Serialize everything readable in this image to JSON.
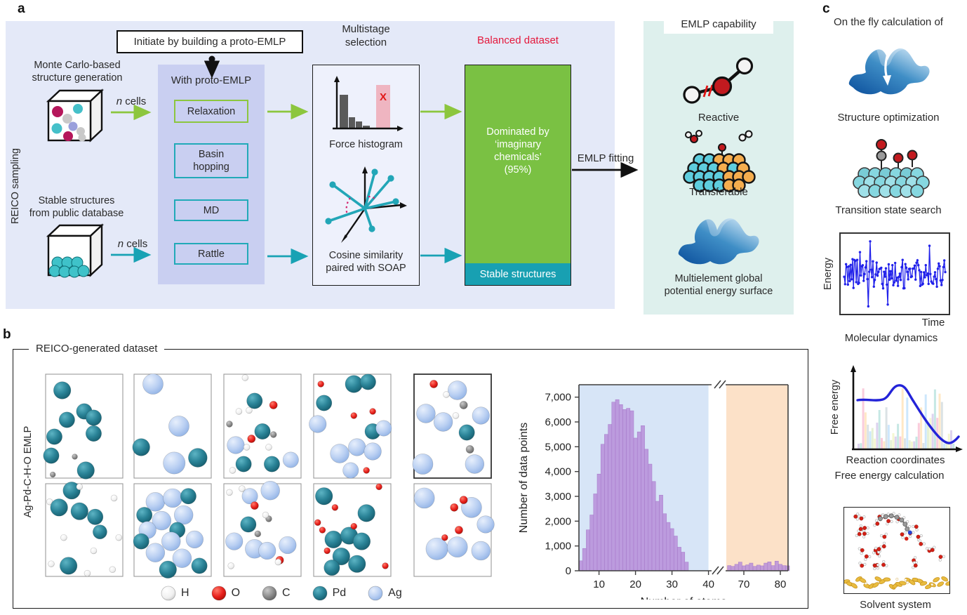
{
  "colors": {
    "panel_a_bg": "#e4e9f8",
    "proto_bg": "#c9cff1",
    "multistage_bg": "#eef1fc",
    "mint_bg": "#def0ed",
    "green_box": "#7ac143",
    "teal_strip": "#18a0b2",
    "green_arrow": "#8cc63e",
    "teal_arrow": "#18a2b4",
    "red_text": "#e4173b",
    "bar_purple": "#b78ed9",
    "region_blue": "#d7e5f7",
    "region_orange": "#fce1c8",
    "md_blue": "#2121ea",
    "fe_curve": "#2323d8",
    "gold": "#e9bc3f"
  },
  "element_colors": {
    "H": "#f4f4f4",
    "O": "#e8211d",
    "C": "#8c8c8c",
    "Pd": "#27798c",
    "Ag": "#b9cff2"
  },
  "panel_a": {
    "label": "a",
    "reico_sampling": "REICO sampling",
    "initiate_box": "Initiate by building a proto-EMLP",
    "mc_line1": "Monte Carlo-based",
    "mc_line2": "structure generation",
    "db_line1": "Stable structures",
    "db_line2": "from public database",
    "n_italic": "n",
    "cells_rest": " cells",
    "proto_title": "With proto-EMLP",
    "methods": [
      "Relaxation",
      "Basin hopping",
      "MD",
      "Rattle"
    ],
    "multistage_line1": "Multistage",
    "multistage_line2": "selection",
    "force_histogram_label": "Force histogram",
    "reject_mark": "X",
    "cosine_line1": "Cosine similarity",
    "cosine_line2": "paired with SOAP",
    "balanced_dataset": "Balanced dataset",
    "dominated_line1": "Dominated by",
    "dominated_line2": "‘imaginary",
    "dominated_line3": "chemicals’",
    "dominated_line4": "(95%)",
    "stable_structures": "Stable structures",
    "emlp_fitting": "EMLP fitting"
  },
  "capability": {
    "title": "EMLP capability",
    "reactive": "Reactive",
    "transferable": "Transferable",
    "multi_line1": "Multielement global",
    "multi_line2": "potential energy surface"
  },
  "panel_b": {
    "label": "b",
    "title": "REICO-generated dataset",
    "side_label": "Ag-Pd-C-H-O EMLP",
    "legend": [
      {
        "symbol": "H"
      },
      {
        "symbol": "O"
      },
      {
        "symbol": "C"
      },
      {
        "symbol": "Pd"
      },
      {
        "symbol": "Ag"
      }
    ],
    "cells": [
      {
        "atoms": [
          [
            "Pd",
            22,
            16,
            11
          ],
          [
            "Pd",
            50,
            36,
            10
          ],
          [
            "Pd",
            62,
            42,
            10
          ],
          [
            "Pd",
            28,
            44,
            10
          ],
          [
            "Pd",
            12,
            60,
            10
          ],
          [
            "Pd",
            62,
            57,
            10
          ],
          [
            "Pd",
            8,
            78,
            10
          ],
          [
            "Pd",
            52,
            92,
            11
          ],
          [
            "C",
            38,
            79,
            3.5
          ],
          [
            "C",
            10,
            96,
            3.5
          ]
        ]
      },
      {
        "atoms": [
          [
            "Ag",
            25,
            10,
            13
          ],
          [
            "Ag",
            58,
            50,
            13
          ],
          [
            "Ag",
            52,
            85,
            14
          ],
          [
            "Pd",
            10,
            70,
            11
          ],
          [
            "Pd",
            82,
            80,
            12
          ]
        ]
      },
      {
        "atoms": [
          [
            "H",
            28,
            4,
            4
          ],
          [
            "Pd",
            40,
            26,
            10
          ],
          [
            "O",
            64,
            30,
            5
          ],
          [
            "H",
            20,
            36,
            4
          ],
          [
            "H",
            33,
            35,
            4
          ],
          [
            "C",
            8,
            48,
            4
          ],
          [
            "Pd",
            50,
            55,
            10
          ],
          [
            "Ag",
            16,
            68,
            11
          ],
          [
            "O",
            36,
            62,
            5
          ],
          [
            "H",
            30,
            70,
            4
          ],
          [
            "C",
            64,
            58,
            4
          ],
          [
            "Pd",
            26,
            86,
            10
          ],
          [
            "Pd",
            62,
            86,
            10
          ],
          [
            "Ag",
            86,
            82,
            10
          ],
          [
            "H",
            12,
            92,
            4
          ],
          [
            "H",
            58,
            70,
            4
          ]
        ]
      },
      {
        "atoms": [
          [
            "O",
            10,
            10,
            4
          ],
          [
            "Pd",
            52,
            10,
            11
          ],
          [
            "Pd",
            70,
            8,
            10
          ],
          [
            "Pd",
            14,
            28,
            10
          ],
          [
            "Ag",
            6,
            48,
            11
          ],
          [
            "O",
            52,
            40,
            4
          ],
          [
            "O",
            76,
            36,
            4
          ],
          [
            "Pd",
            76,
            55,
            10
          ],
          [
            "Ag",
            34,
            76,
            12
          ],
          [
            "Ag",
            56,
            70,
            11
          ],
          [
            "Ag",
            76,
            74,
            11
          ],
          [
            "Ag",
            90,
            52,
            10
          ],
          [
            "Ag",
            48,
            92,
            10
          ],
          [
            "O",
            68,
            92,
            4
          ]
        ]
      },
      {
        "atoms": [
          [
            "O",
            26,
            10,
            5
          ],
          [
            "Ag",
            56,
            16,
            12
          ],
          [
            "H",
            42,
            20,
            4
          ],
          [
            "C",
            64,
            30,
            5
          ],
          [
            "Ag",
            16,
            38,
            12
          ],
          [
            "H",
            54,
            40,
            4
          ],
          [
            "Ag",
            38,
            46,
            12
          ],
          [
            "Pd",
            68,
            56,
            10
          ],
          [
            "C",
            72,
            72,
            5
          ],
          [
            "Ag",
            12,
            86,
            13
          ],
          [
            "Ag",
            78,
            86,
            12
          ],
          [
            "Ag",
            86,
            40,
            11
          ]
        ]
      },
      {
        "atoms": [
          [
            "Pd",
            34,
            8,
            11
          ],
          [
            "H",
            44,
            4,
            4
          ],
          [
            "H",
            6,
            20,
            4
          ],
          [
            "Pd",
            18,
            26,
            11
          ],
          [
            "Pd",
            44,
            30,
            11
          ],
          [
            "Pd",
            64,
            36,
            10
          ],
          [
            "H",
            88,
            16,
            4
          ],
          [
            "H",
            24,
            58,
            4
          ],
          [
            "Pd",
            70,
            52,
            9
          ],
          [
            "H",
            62,
            72,
            4
          ],
          [
            "Pd",
            30,
            88,
            11
          ],
          [
            "H",
            8,
            86,
            4
          ],
          [
            "H",
            54,
            96,
            4
          ],
          [
            "H",
            86,
            92,
            4
          ],
          [
            "H",
            94,
            58,
            4
          ]
        ]
      },
      {
        "atoms": [
          [
            "Ag",
            28,
            20,
            12
          ],
          [
            "Ag",
            50,
            16,
            12
          ],
          [
            "Pd",
            70,
            14,
            10
          ],
          [
            "Ag",
            64,
            34,
            12
          ],
          [
            "Ag",
            36,
            40,
            12
          ],
          [
            "Pd",
            14,
            34,
            10
          ],
          [
            "Ag",
            18,
            50,
            11
          ],
          [
            "Pd",
            56,
            50,
            10
          ],
          [
            "Ag",
            48,
            62,
            12
          ],
          [
            "Pd",
            10,
            62,
            10
          ],
          [
            "Ag",
            28,
            74,
            12
          ],
          [
            "Ag",
            62,
            80,
            12
          ],
          [
            "Ag",
            78,
            60,
            11
          ],
          [
            "Pd",
            44,
            92,
            11
          ],
          [
            "Pd",
            84,
            88,
            10
          ]
        ]
      },
      {
        "atoms": [
          [
            "H",
            8,
            10,
            4
          ],
          [
            "H",
            24,
            6,
            4
          ],
          [
            "Ag",
            60,
            8,
            12
          ],
          [
            "Ag",
            34,
            14,
            10
          ],
          [
            "O",
            40,
            24,
            5
          ],
          [
            "C",
            58,
            38,
            4
          ],
          [
            "Pd",
            32,
            44,
            10
          ],
          [
            "H",
            54,
            34,
            4
          ],
          [
            "Ag",
            14,
            62,
            11
          ],
          [
            "C",
            44,
            54,
            4
          ],
          [
            "Ag",
            40,
            70,
            12
          ],
          [
            "Ag",
            56,
            72,
            11
          ],
          [
            "Ag",
            82,
            66,
            11
          ],
          [
            "O",
            72,
            82,
            5
          ],
          [
            "H",
            10,
            88,
            4
          ],
          [
            "H",
            70,
            84,
            4
          ]
        ]
      },
      {
        "atoms": [
          [
            "O",
            84,
            4,
            4
          ],
          [
            "Pd",
            14,
            14,
            11
          ],
          [
            "O",
            28,
            26,
            4
          ],
          [
            "Pd",
            68,
            32,
            11
          ],
          [
            "O",
            6,
            42,
            4
          ],
          [
            "O",
            12,
            50,
            4
          ],
          [
            "Pd",
            26,
            60,
            11
          ],
          [
            "Pd",
            46,
            56,
            11
          ],
          [
            "O",
            52,
            46,
            4
          ],
          [
            "Pd",
            62,
            62,
            11
          ],
          [
            "Pd",
            36,
            78,
            11
          ],
          [
            "Pd",
            56,
            86,
            11
          ],
          [
            "O",
            18,
            72,
            4
          ],
          [
            "Pd",
            24,
            90,
            10
          ],
          [
            "O",
            92,
            88,
            4
          ]
        ]
      },
      {
        "atoms": [
          [
            "Ag",
            14,
            16,
            13
          ],
          [
            "Ag",
            74,
            26,
            13
          ],
          [
            "O",
            52,
            26,
            5
          ],
          [
            "O",
            64,
            18,
            5
          ],
          [
            "O",
            58,
            50,
            5
          ],
          [
            "Ag",
            30,
            70,
            14
          ],
          [
            "Ag",
            56,
            68,
            13
          ],
          [
            "Ag",
            86,
            72,
            12
          ],
          [
            "O",
            40,
            58,
            4
          ],
          [
            "Ag",
            92,
            44,
            11
          ]
        ]
      }
    ]
  },
  "chart_data": {
    "type": "bar",
    "title": "",
    "xlabel": "Number of atoms",
    "ylabel": "Number of data points",
    "ylim": [
      0,
      7500
    ],
    "y_ticks": [
      "0",
      "1,000",
      "2,000",
      "3,000",
      "4,000",
      "5,000",
      "6,000",
      "7,000"
    ],
    "x_ticks_left": [
      10,
      20,
      30,
      40
    ],
    "x_ticks_right": [
      70,
      80
    ],
    "axis_break": true,
    "blue_region_atoms": [
      4.5,
      40
    ],
    "orange_region_atoms": [
      65,
      82.5
    ],
    "left_bins_start_atom": 5,
    "left_values": [
      400,
      900,
      1650,
      2250,
      3100,
      3900,
      5100,
      5500,
      5900,
      6800,
      6900,
      6700,
      6500,
      6550,
      6450,
      5350,
      5600,
      5850,
      4900,
      4300,
      3600,
      2800,
      3050,
      2300,
      1950,
      1700,
      1400,
      950,
      750,
      350
    ],
    "right_bins_start_atom": 66,
    "right_values": [
      210,
      180,
      260,
      350,
      200,
      240,
      310,
      180,
      230,
      200,
      310,
      360,
      210,
      390,
      260,
      210,
      200
    ]
  },
  "panel_c": {
    "label": "c",
    "title": "On the fly calculation of",
    "caption_structure": "Structure optimization",
    "caption_transition": "Transition state search",
    "caption_md": "Molecular dynamics",
    "caption_fe": "Free energy calculation",
    "caption_solvent": "Solvent system",
    "md_ylabel": "Energy",
    "md_xlabel": "Time",
    "fe_ylabel": "Free energy",
    "fe_xlabel": "Reaction coordinates"
  }
}
